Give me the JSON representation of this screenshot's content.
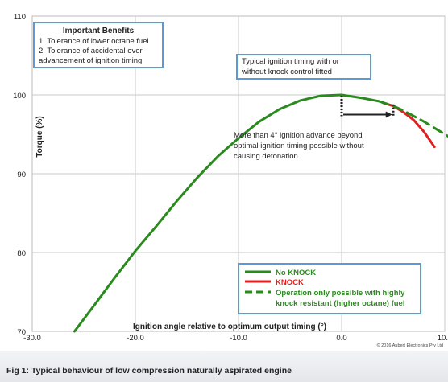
{
  "chart_data": {
    "type": "line",
    "xlabel": "Ignition angle relative to optimum output timing (°)",
    "ylabel": "Torque (%)",
    "xlim": [
      -30,
      10
    ],
    "ylim": [
      70,
      110
    ],
    "x_ticks": [
      "-30.0",
      "-20.0",
      "-10.0",
      "0.0",
      "10.0"
    ],
    "y_ticks": [
      "70",
      "80",
      "90",
      "100",
      "110"
    ],
    "grid": true,
    "series": [
      {
        "name": "No KNOCK",
        "color": "#2a8a1e",
        "style": "solid",
        "x": [
          -25.9,
          -24,
          -22,
          -20,
          -18,
          -16,
          -14,
          -12,
          -10,
          -8,
          -6,
          -4,
          -2,
          0,
          2,
          3.6
        ],
        "y": [
          70,
          73.3,
          76.8,
          80.2,
          83.3,
          86.5,
          89.5,
          92.2,
          94.5,
          96.6,
          98.2,
          99.3,
          99.9,
          100,
          99.6,
          99.2
        ]
      },
      {
        "name": "KNOCK",
        "color": "#e02020",
        "style": "solid",
        "x": [
          4,
          5,
          6,
          7,
          8,
          9
        ],
        "y": [
          99.0,
          98.6,
          97.8,
          96.8,
          95.3,
          93.4
        ]
      },
      {
        "name": "Operation only possible with highly knock resistant (higher octane) fuel",
        "color": "#2a8a1e",
        "style": "dashed",
        "x": [
          3.6,
          5,
          6,
          7,
          8,
          9,
          10,
          11,
          11.8
        ],
        "y": [
          99.2,
          98.6,
          98.0,
          97.3,
          96.6,
          95.8,
          95.0,
          94.2,
          93.4
        ]
      }
    ],
    "benefits_box": {
      "title": "Important Benefits",
      "lines": [
        "1. Tolerance of lower octane fuel",
        "2. Tolerance of accidental over",
        "advancement of ignition timing"
      ]
    },
    "timing_callout": [
      "Typical ignition timing with or",
      "without knock control fitted"
    ],
    "advance_note": [
      "More than 4° ignition advance beyond",
      "optimal ignition timing possible without",
      "causing detonation"
    ],
    "legend_entries": [
      "No KNOCK",
      "KNOCK",
      "Operation only possible with highly",
      "knock resistant (higher octane) fuel"
    ],
    "legend_position": "bottom-right",
    "copyright": "© 2016 Aubert Electronics Pty Ltd"
  },
  "colors": {
    "green": "#2a8a1e",
    "red": "#e02020",
    "box_border": "#5b9bd5",
    "grid": "#c8c8c8",
    "axis_text": "#222222"
  },
  "caption": "Fig 1: Typical behaviour of low compression naturally aspirated engine"
}
